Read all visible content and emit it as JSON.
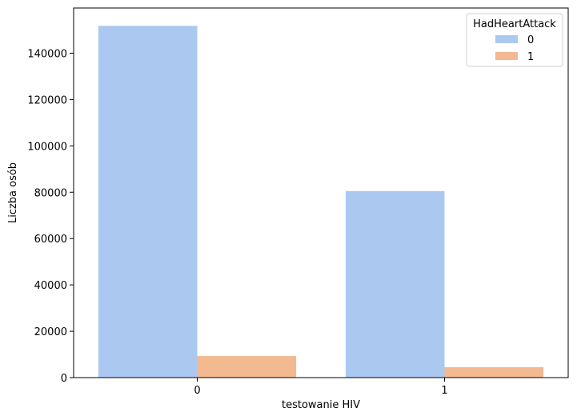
{
  "chart_data": {
    "type": "bar",
    "categories": [
      "0",
      "1"
    ],
    "series": [
      {
        "name": "0",
        "values": [
          151800,
          80500
        ],
        "color": "#abc9f0"
      },
      {
        "name": "1",
        "values": [
          9300,
          4500
        ],
        "color": "#f3b991"
      }
    ],
    "xlabel": "testowanie HIV",
    "ylabel": "Liczba osób",
    "ylim": [
      0,
      159500
    ],
    "yticks": [
      0,
      20000,
      40000,
      60000,
      80000,
      100000,
      120000,
      140000
    ],
    "ytick_labels": [
      "0",
      "20000",
      "40000",
      "60000",
      "80000",
      "100000",
      "120000",
      "140000"
    ],
    "legend": {
      "title": "HadHeartAttack",
      "placement": "top-right"
    },
    "grid": false
  }
}
